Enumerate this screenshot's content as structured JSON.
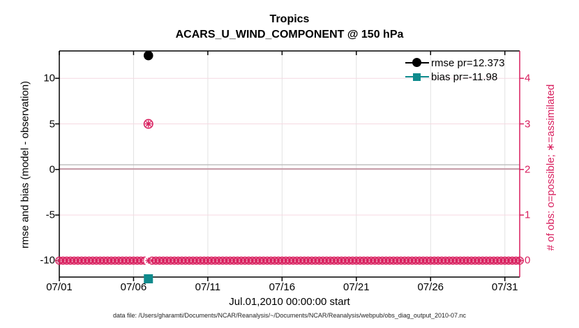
{
  "header": {
    "title": "Tropics",
    "subtitle": "ACARS_U_WIND_COMPONENT @ 150 hPa"
  },
  "colors": {
    "pink": "#d81f5e",
    "pink_grid": "#f6d9e2",
    "mauve_zero_line": "#c49aa6",
    "gray_zero_line": "#c0c0c0",
    "gray_grid": "#e2e2e2",
    "teal": "#0f8b8d",
    "black": "#000000"
  },
  "legend": {
    "items": [
      {
        "label": "rmse pr=12.373",
        "marker": "filled-circle",
        "color": "#000000"
      },
      {
        "label": "bias pr=-11.98",
        "marker": "filled-square",
        "color": "#0f8b8d"
      }
    ]
  },
  "footer": "data file: /Users/gharamti/Documents/NCAR/Reanalysis/~/Documents/NCAR/Reanalysis/webpub/obs_diag_output_2010-07.nc",
  "chart_data": {
    "type": "line",
    "title": "Tropics",
    "subtitle": "ACARS_U_WIND_COMPONENT @ 150 hPa",
    "xlabel": "Jul.01,2010 00:00:00 start",
    "x_tick_labels": [
      "07/01",
      "07/06",
      "07/11",
      "07/16",
      "07/21",
      "07/26",
      "07/31"
    ],
    "x_tick_days": [
      1,
      6,
      11,
      16,
      21,
      26,
      31
    ],
    "x_range_days": [
      1,
      32
    ],
    "ylabel_left": "rmse and bias (model - observation)",
    "yticks_left": [
      10,
      5,
      0,
      -5,
      -10
    ],
    "ylim_left": [
      -11.79,
      12.87
    ],
    "ylabel_right": "# of obs: o=possible; ∗=assimilated",
    "yticks_right": [
      4,
      3,
      2,
      1,
      0
    ],
    "ylim_right": [
      -0.36,
      4.6
    ],
    "grid": {
      "vertical": "on",
      "horizontal_right_axis": "on"
    },
    "legend_position": "top-right-inside",
    "series": [
      {
        "name": "rmse pr=12.373",
        "axis": "left",
        "color": "#000000",
        "marker": "filled-circle",
        "points": [
          {
            "day": 7,
            "value": 12.373
          }
        ]
      },
      {
        "name": "bias pr=-11.98",
        "axis": "left",
        "color": "#0f8b8d",
        "marker": "filled-square",
        "points": [
          {
            "day": 7,
            "value": -11.98
          }
        ]
      },
      {
        "name": "possible",
        "axis": "right",
        "color": "#d81f5e",
        "marker": "open-circle",
        "bin_interval_days": 0.25,
        "default_value": 0,
        "exceptions": [
          {
            "day": 7,
            "value": 3
          }
        ]
      },
      {
        "name": "assimilated",
        "axis": "right",
        "color": "#d81f5e",
        "marker": "asterisk",
        "bin_interval_days": 0.25,
        "default_value": 0,
        "exceptions": [
          {
            "day": 7,
            "value": 3
          }
        ]
      }
    ],
    "reference_lines": [
      {
        "axis": "left",
        "value": 0.45,
        "color": "#c0c0c0",
        "note": "gray zero reference line"
      },
      {
        "axis": "left",
        "value": 0,
        "color": "#c49aa6",
        "note": "pinkish zero / right-axis 2 gridline"
      }
    ]
  }
}
